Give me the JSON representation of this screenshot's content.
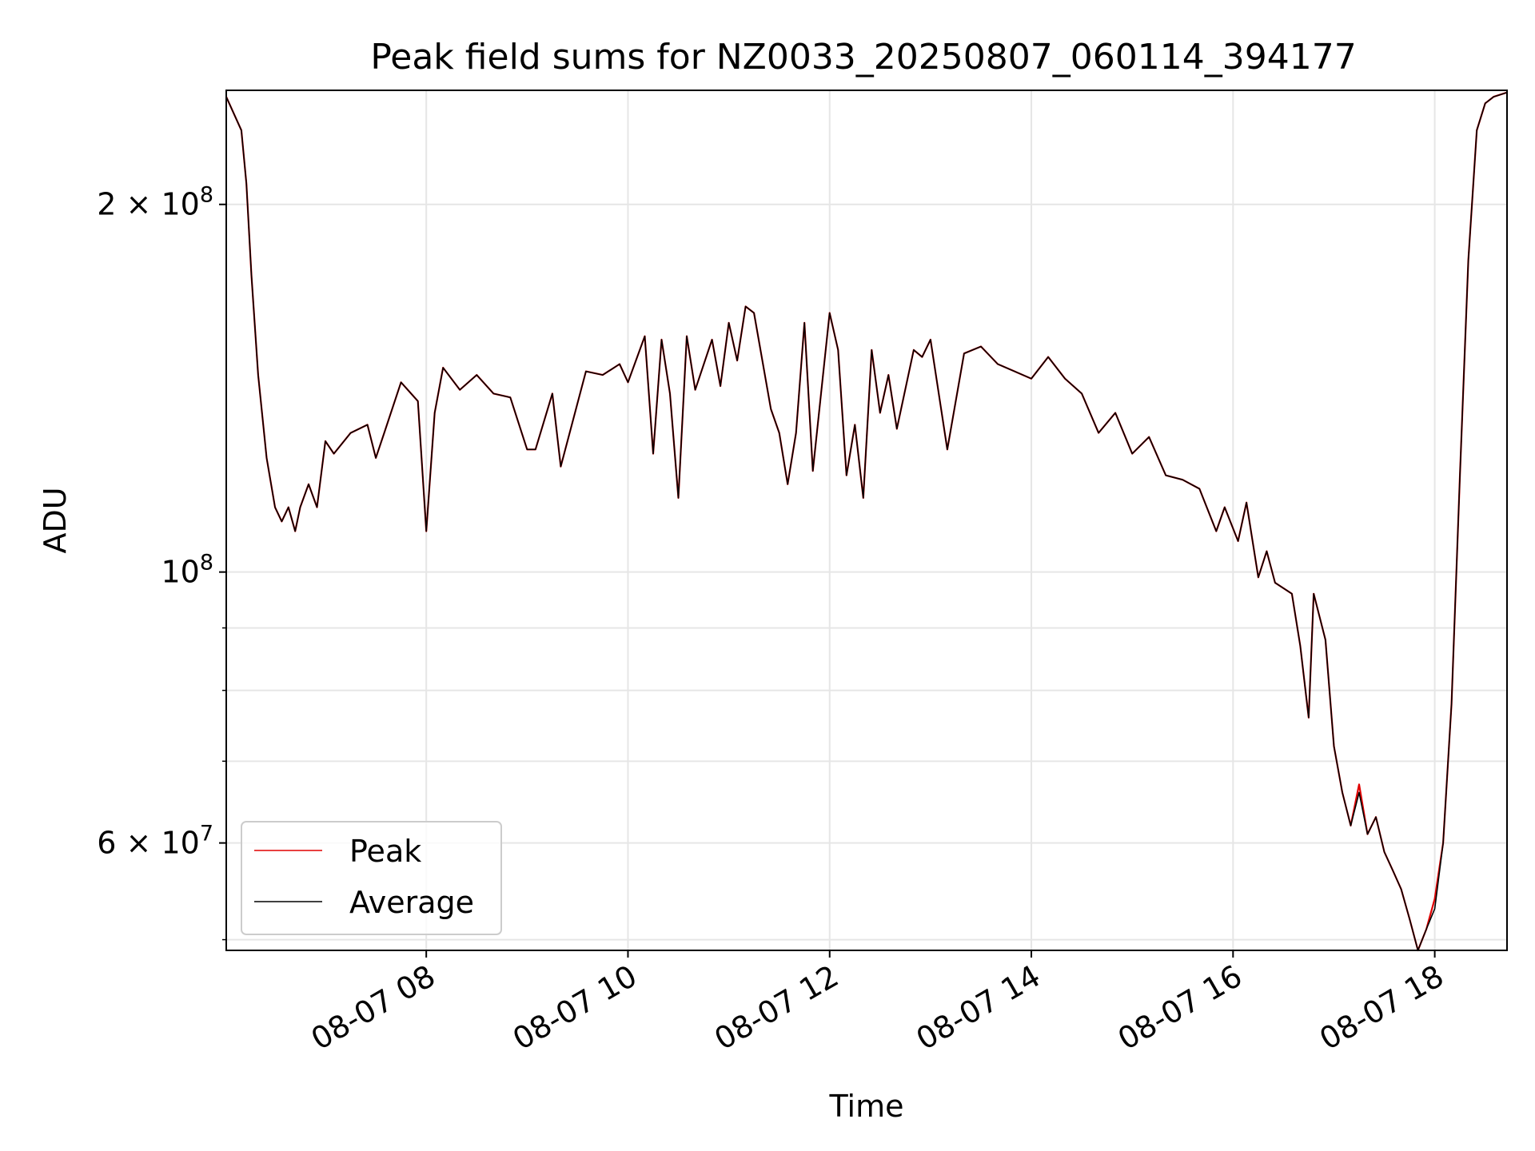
{
  "chart_data": {
    "type": "line",
    "title": "Peak field sums for NZ0033_20250807_060114_394177",
    "xlabel": "Time",
    "ylabel": "ADU",
    "y_scale": "log",
    "grid": true,
    "legend_placement": "lower-left",
    "xlim": [
      "2025-08-07 06:01",
      "2025-08-07 18:43"
    ],
    "ylim": [
      49000000,
      248000000
    ],
    "x_tick_labels": [
      "08-07 08",
      "08-07 10",
      "08-07 12",
      "08-07 14",
      "08-07 16",
      "08-07 18"
    ],
    "y_tick_labels": [
      {
        "value": 60000000,
        "label": "6 × 10",
        "exp": "7"
      },
      {
        "value": 100000000,
        "label": "10",
        "exp": "8"
      },
      {
        "value": 200000000,
        "label": "2 × 10",
        "exp": "8"
      }
    ],
    "y_minor_ticks": [
      50000000,
      70000000,
      80000000,
      90000000
    ],
    "x": [
      "2025-08-07 06:01",
      "2025-08-07 06:10",
      "2025-08-07 06:13",
      "2025-08-07 06:16",
      "2025-08-07 06:20",
      "2025-08-07 06:25",
      "2025-08-07 06:30",
      "2025-08-07 06:34",
      "2025-08-07 06:38",
      "2025-08-07 06:42",
      "2025-08-07 06:45",
      "2025-08-07 06:50",
      "2025-08-07 06:55",
      "2025-08-07 07:00",
      "2025-08-07 07:05",
      "2025-08-07 07:15",
      "2025-08-07 07:25",
      "2025-08-07 07:30",
      "2025-08-07 07:35",
      "2025-08-07 07:45",
      "2025-08-07 07:55",
      "2025-08-07 08:00",
      "2025-08-07 08:05",
      "2025-08-07 08:10",
      "2025-08-07 08:20",
      "2025-08-07 08:30",
      "2025-08-07 08:40",
      "2025-08-07 08:50",
      "2025-08-07 09:00",
      "2025-08-07 09:05",
      "2025-08-07 09:15",
      "2025-08-07 09:20",
      "2025-08-07 09:35",
      "2025-08-07 09:45",
      "2025-08-07 09:55",
      "2025-08-07 10:00",
      "2025-08-07 10:10",
      "2025-08-07 10:15",
      "2025-08-07 10:20",
      "2025-08-07 10:25",
      "2025-08-07 10:30",
      "2025-08-07 10:35",
      "2025-08-07 10:40",
      "2025-08-07 10:50",
      "2025-08-07 10:55",
      "2025-08-07 11:00",
      "2025-08-07 11:05",
      "2025-08-07 11:10",
      "2025-08-07 11:15",
      "2025-08-07 11:25",
      "2025-08-07 11:30",
      "2025-08-07 11:35",
      "2025-08-07 11:40",
      "2025-08-07 11:45",
      "2025-08-07 11:50",
      "2025-08-07 12:00",
      "2025-08-07 12:05",
      "2025-08-07 12:10",
      "2025-08-07 12:15",
      "2025-08-07 12:20",
      "2025-08-07 12:25",
      "2025-08-07 12:30",
      "2025-08-07 12:35",
      "2025-08-07 12:40",
      "2025-08-07 12:50",
      "2025-08-07 12:55",
      "2025-08-07 13:00",
      "2025-08-07 13:10",
      "2025-08-07 13:20",
      "2025-08-07 13:30",
      "2025-08-07 13:40",
      "2025-08-07 14:00",
      "2025-08-07 14:10",
      "2025-08-07 14:20",
      "2025-08-07 14:30",
      "2025-08-07 14:40",
      "2025-08-07 14:50",
      "2025-08-07 15:00",
      "2025-08-07 15:10",
      "2025-08-07 15:20",
      "2025-08-07 15:30",
      "2025-08-07 15:40",
      "2025-08-07 15:50",
      "2025-08-07 15:55",
      "2025-08-07 16:03",
      "2025-08-07 16:08",
      "2025-08-07 16:15",
      "2025-08-07 16:20",
      "2025-08-07 16:25",
      "2025-08-07 16:35",
      "2025-08-07 16:40",
      "2025-08-07 16:45",
      "2025-08-07 16:48",
      "2025-08-07 16:55",
      "2025-08-07 17:00",
      "2025-08-07 17:05",
      "2025-08-07 17:10",
      "2025-08-07 17:15",
      "2025-08-07 17:20",
      "2025-08-07 17:25",
      "2025-08-07 17:30",
      "2025-08-07 17:35",
      "2025-08-07 17:40",
      "2025-08-07 17:45",
      "2025-08-07 17:50",
      "2025-08-07 17:55",
      "2025-08-07 18:00",
      "2025-08-07 18:05",
      "2025-08-07 18:10",
      "2025-08-07 18:15",
      "2025-08-07 18:20",
      "2025-08-07 18:25",
      "2025-08-07 18:30",
      "2025-08-07 18:35",
      "2025-08-07 18:43"
    ],
    "series": [
      {
        "name": "Peak",
        "color": "#e00000",
        "values": [
          245000000,
          230000000,
          208000000,
          175000000,
          145000000,
          124000000,
          113000000,
          110000000,
          113000000,
          108000000,
          113000000,
          118000000,
          113000000,
          128000000,
          125000000,
          130000000,
          132000000,
          124000000,
          130000000,
          143000000,
          138000000,
          108000000,
          135000000,
          147000000,
          141000000,
          145000000,
          140000000,
          139000000,
          126000000,
          126000000,
          140000000,
          122000000,
          146000000,
          145000000,
          148000000,
          143000000,
          156000000,
          125000000,
          155000000,
          140000000,
          115000000,
          156000000,
          141000000,
          155000000,
          142000000,
          160000000,
          149000000,
          165000000,
          163000000,
          136000000,
          130000000,
          118000000,
          130000000,
          160000000,
          121000000,
          163000000,
          152000000,
          120000000,
          132000000,
          115000000,
          152000000,
          135000000,
          145000000,
          131000000,
          152000000,
          150000000,
          155000000,
          126000000,
          151000000,
          153000000,
          148000000,
          144000000,
          150000000,
          144000000,
          140000000,
          130000000,
          135000000,
          125000000,
          129000000,
          120000000,
          119000000,
          117000000,
          108000000,
          113000000,
          106000000,
          114000000,
          99000000,
          104000000,
          98000000,
          96000000,
          87000000,
          76000000,
          96000000,
          88000000,
          72000000,
          66000000,
          62000000,
          67000000,
          61000000,
          63000000,
          59000000,
          57000000,
          55000000,
          52000000,
          49000000,
          51000000,
          54000000,
          60000000,
          78000000,
          120000000,
          180000000,
          230000000,
          242000000,
          245000000,
          247000000
        ]
      },
      {
        "name": "Average",
        "color": "#000000",
        "values": [
          245000000,
          230000000,
          208000000,
          175000000,
          145000000,
          124000000,
          113000000,
          110000000,
          113000000,
          108000000,
          113000000,
          118000000,
          113000000,
          128000000,
          125000000,
          130000000,
          132000000,
          124000000,
          130000000,
          143000000,
          138000000,
          108000000,
          135000000,
          147000000,
          141000000,
          145000000,
          140000000,
          139000000,
          126000000,
          126000000,
          140000000,
          122000000,
          146000000,
          145000000,
          148000000,
          143000000,
          156000000,
          125000000,
          155000000,
          140000000,
          115000000,
          156000000,
          141000000,
          155000000,
          142000000,
          160000000,
          149000000,
          165000000,
          163000000,
          136000000,
          130000000,
          118000000,
          130000000,
          160000000,
          121000000,
          163000000,
          152000000,
          120000000,
          132000000,
          115000000,
          152000000,
          135000000,
          145000000,
          131000000,
          152000000,
          150000000,
          155000000,
          126000000,
          151000000,
          153000000,
          148000000,
          144000000,
          150000000,
          144000000,
          140000000,
          130000000,
          135000000,
          125000000,
          129000000,
          120000000,
          119000000,
          117000000,
          108000000,
          113000000,
          106000000,
          114000000,
          99000000,
          104000000,
          98000000,
          96000000,
          87000000,
          76000000,
          96000000,
          88000000,
          72000000,
          66000000,
          62000000,
          66000000,
          61000000,
          63000000,
          59000000,
          57000000,
          55000000,
          52000000,
          49000000,
          51000000,
          53000000,
          60000000,
          78000000,
          120000000,
          180000000,
          230000000,
          242000000,
          245000000,
          247000000
        ]
      }
    ]
  }
}
